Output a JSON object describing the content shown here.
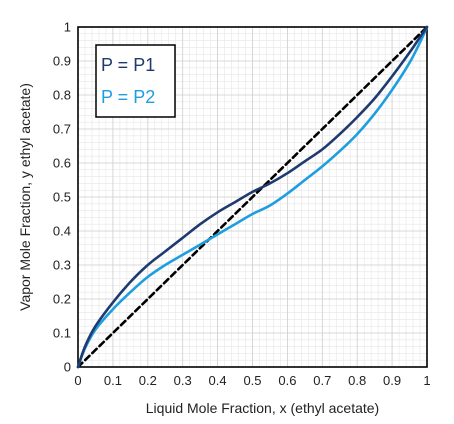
{
  "chart_data": {
    "type": "line",
    "title": "",
    "xlabel": "Liquid Mole Fraction, x (ethyl acetate)",
    "ylabel": "Vapor Mole Fraction, y ethyl acetate)",
    "xlim": [
      0,
      1
    ],
    "ylim": [
      0,
      1
    ],
    "xticks": [
      "0",
      "0.1",
      "0.2",
      "0.3",
      "0.4",
      "0.5",
      "0.6",
      "0.7",
      "0.8",
      "0.9",
      "1"
    ],
    "yticks": [
      "0",
      "0.1",
      "0.2",
      "0.3",
      "0.4",
      "0.5",
      "0.6",
      "0.7",
      "0.8",
      "0.9",
      "1"
    ],
    "grid": true,
    "legend_position": "top-left",
    "series": [
      {
        "name": "P = P1",
        "color": "#1f3a6e",
        "x": [
          0,
          0.02,
          0.05,
          0.1,
          0.15,
          0.2,
          0.25,
          0.3,
          0.35,
          0.4,
          0.45,
          0.5,
          0.55,
          0.6,
          0.65,
          0.7,
          0.75,
          0.8,
          0.85,
          0.9,
          0.95,
          0.98,
          1
        ],
        "y": [
          0,
          0.06,
          0.12,
          0.19,
          0.25,
          0.3,
          0.34,
          0.38,
          0.42,
          0.455,
          0.485,
          0.515,
          0.54,
          0.57,
          0.605,
          0.64,
          0.685,
          0.735,
          0.79,
          0.855,
          0.925,
          0.97,
          1
        ]
      },
      {
        "name": "P = P2",
        "color": "#1e9ee0",
        "x": [
          0,
          0.02,
          0.05,
          0.1,
          0.15,
          0.2,
          0.25,
          0.3,
          0.35,
          0.4,
          0.45,
          0.5,
          0.55,
          0.6,
          0.65,
          0.7,
          0.75,
          0.8,
          0.85,
          0.9,
          0.95,
          0.98,
          1
        ],
        "y": [
          0,
          0.055,
          0.11,
          0.17,
          0.22,
          0.265,
          0.3,
          0.33,
          0.36,
          0.39,
          0.42,
          0.45,
          0.475,
          0.51,
          0.55,
          0.59,
          0.635,
          0.685,
          0.745,
          0.815,
          0.895,
          0.955,
          1
        ]
      },
      {
        "name": "",
        "color": "#000000",
        "dashed": true,
        "x": [
          0,
          1
        ],
        "y": [
          0,
          1
        ]
      }
    ]
  }
}
